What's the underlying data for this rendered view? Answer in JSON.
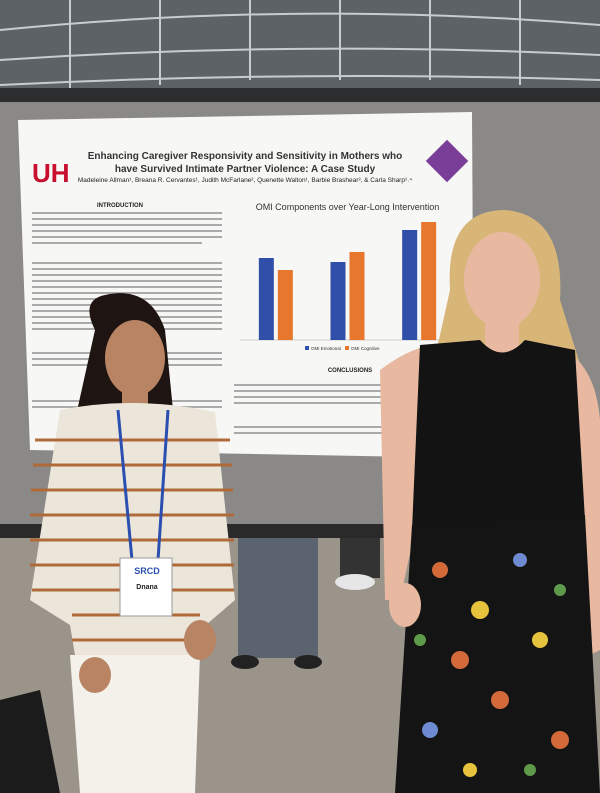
{
  "poster": {
    "logo": "UH",
    "title": "Enhancing Caregiver Responsivity and Sensitivity in Mothers who have Survived Intimate Partner Violence: A Case Study",
    "authors": "Madeleine Allman¹, Breana R. Cervantes¹, Judith McFarlane², Quenette Walton¹, Barbie Brashear³, & Carla Sharp¹˒⁴",
    "intro_heading": "INTRODUCTION",
    "conclusions_heading": "CONCLUSIONS"
  },
  "badge": {
    "org": "SRCD",
    "name": "Dnana"
  },
  "chart_data": {
    "type": "bar",
    "title": "OMI Components over Year-Long Intervention",
    "categories": [
      null,
      null,
      null
    ],
    "series": [
      {
        "name": "OMI Emotional",
        "color": "#2f4fa8",
        "values": [
          82,
          78,
          110
        ]
      },
      {
        "name": "OMI Cognitive",
        "color": "#e8772e",
        "values": [
          70,
          88,
          118
        ]
      }
    ],
    "ylim": [
      0,
      125
    ]
  }
}
